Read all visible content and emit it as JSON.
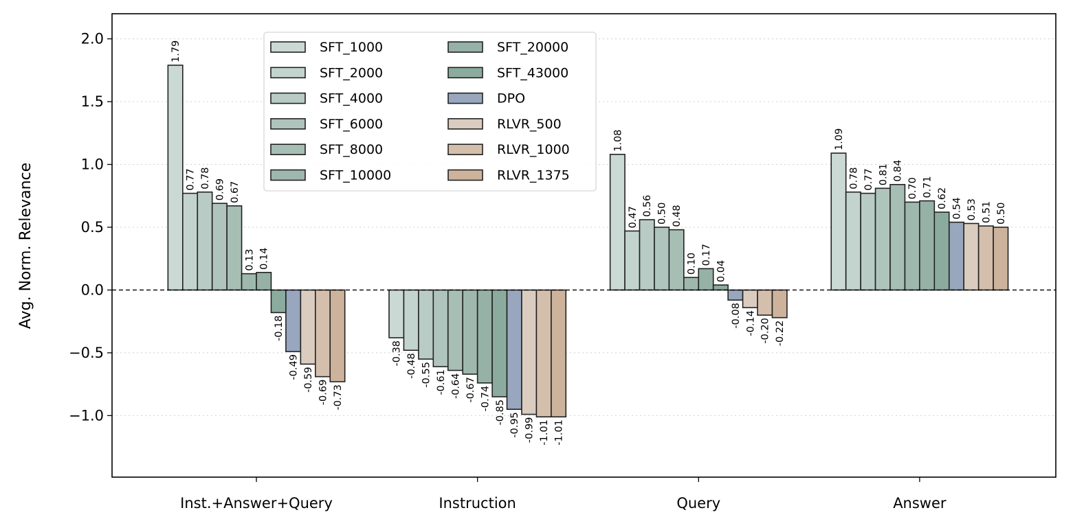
{
  "chart_data": {
    "type": "bar",
    "title": "",
    "xlabel": "",
    "ylabel": "Avg. Norm. Relevance",
    "ylim": [
      -1.49,
      2.2
    ],
    "yticks": [
      -1.0,
      -0.5,
      0.0,
      0.5,
      1.0,
      1.5,
      2.0
    ],
    "ytick_labels": [
      "−1.0",
      "−0.5",
      "0.0",
      "0.5",
      "1.0",
      "1.5",
      "2.0"
    ],
    "grid": "horizontal dotted",
    "zero_line": "dashed",
    "legend_placement": "upper-center-left, 2 columns",
    "categories": [
      "Inst.+Answer+Query",
      "Instruction",
      "Query",
      "Answer"
    ],
    "series": [
      {
        "name": "SFT_1000",
        "color": "#cad9d3",
        "values": [
          1.79,
          -0.38,
          1.08,
          1.09
        ]
      },
      {
        "name": "SFT_2000",
        "color": "#c2d4cd",
        "values": [
          0.77,
          -0.48,
          0.47,
          0.78
        ]
      },
      {
        "name": "SFT_4000",
        "color": "#b8cbc4",
        "values": [
          0.78,
          -0.55,
          0.56,
          0.77
        ]
      },
      {
        "name": "SFT_6000",
        "color": "#afc4bc",
        "values": [
          0.69,
          -0.61,
          0.5,
          0.81
        ]
      },
      {
        "name": "SFT_8000",
        "color": "#a7beb5",
        "values": [
          0.67,
          -0.64,
          0.48,
          0.84
        ]
      },
      {
        "name": "SFT_10000",
        "color": "#9fb8ae",
        "values": [
          0.13,
          -0.67,
          0.1,
          0.7
        ]
      },
      {
        "name": "SFT_20000",
        "color": "#96b1a6",
        "values": [
          0.14,
          -0.74,
          0.17,
          0.71
        ]
      },
      {
        "name": "SFT_43000",
        "color": "#8aab9e",
        "values": [
          -0.18,
          -0.85,
          0.04,
          0.62
        ]
      },
      {
        "name": "DPO",
        "color": "#98a6be",
        "values": [
          -0.49,
          -0.95,
          -0.08,
          0.54
        ]
      },
      {
        "name": "RLVR_500",
        "color": "#dacdc0",
        "values": [
          -0.59,
          -0.99,
          -0.14,
          0.53
        ]
      },
      {
        "name": "RLVR_1000",
        "color": "#d4bfac",
        "values": [
          -0.69,
          -1.01,
          -0.2,
          0.51
        ]
      },
      {
        "name": "RLVR_1375",
        "color": "#cdb39b",
        "values": [
          -0.73,
          -1.01,
          -0.22,
          0.5
        ]
      }
    ]
  }
}
